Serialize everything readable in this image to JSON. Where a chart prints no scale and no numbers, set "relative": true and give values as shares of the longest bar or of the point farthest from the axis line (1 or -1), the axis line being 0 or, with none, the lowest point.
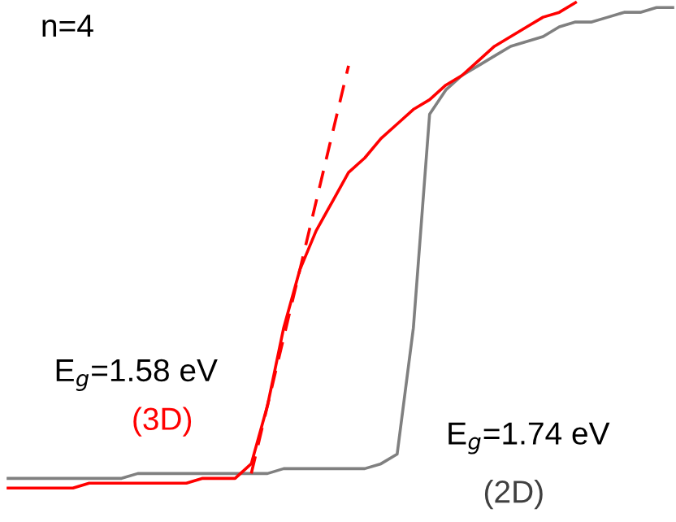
{
  "chart_data": {
    "type": "line",
    "relative": true,
    "categories": [
      null,
      null,
      null,
      null,
      null,
      null,
      null,
      null,
      null,
      null,
      null,
      null,
      null,
      null,
      null,
      null,
      null,
      null,
      null,
      null,
      null,
      null,
      null,
      null,
      null,
      null,
      null,
      null,
      null,
      null,
      null,
      null,
      null,
      null,
      null,
      null,
      null,
      null,
      null,
      null,
      null,
      null
    ],
    "series": [
      {
        "color": "#808080",
        "values": [
          0.02,
          0.02,
          0.02,
          0.02,
          0.02,
          0.02,
          0.02,
          0.02,
          0.03,
          0.03,
          0.03,
          0.03,
          0.03,
          0.03,
          0.03,
          0.03,
          0.03,
          0.04,
          0.04,
          0.04,
          0.04,
          0.04,
          0.04,
          0.05,
          0.07,
          0.33,
          0.77,
          0.82,
          0.85,
          0.87,
          0.89,
          0.91,
          0.92,
          0.93,
          0.95,
          0.96,
          0.96,
          0.97,
          0.98,
          0.98,
          0.99,
          0.99
        ]
      },
      {
        "color": "#ff0000",
        "values": [
          0,
          0,
          0,
          0,
          0,
          0.01,
          0.01,
          0.01,
          0.01,
          0.01,
          0.01,
          0.01,
          0.02,
          0.02,
          0.02,
          0.05,
          0.17,
          0.33,
          0.45,
          0.53,
          0.59,
          0.65,
          0.68,
          0.72,
          0.75,
          0.78,
          0.8,
          0.83,
          0.85,
          0.88,
          0.91,
          0.93,
          0.95,
          0.97,
          0.98,
          1,
          null,
          null,
          null,
          null,
          null,
          null
        ]
      },
      {
        "color": "#ff0000",
        "line_style": "dashed",
        "values": [
          null,
          null,
          null,
          null,
          null,
          null,
          null,
          null,
          null,
          null,
          null,
          null,
          null,
          null,
          null,
          0.03,
          0.17,
          0.31,
          0.45,
          0.59,
          0.73,
          0.87,
          null,
          null,
          null,
          null,
          null,
          null,
          null,
          null,
          null,
          null,
          null,
          null,
          null,
          null,
          null,
          null,
          null,
          null,
          null,
          null
        ]
      }
    ],
    "annotations": [
      "n=4",
      "E$_{g}$=1.58 eV",
      "(3D)",
      "E$_{g}$=1.74 eV",
      "(2D)"
    ]
  }
}
